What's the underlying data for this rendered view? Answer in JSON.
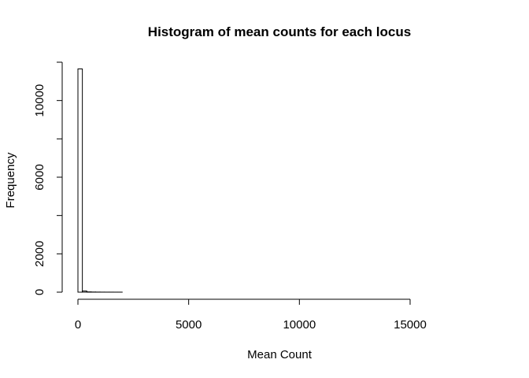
{
  "chart_data": {
    "type": "bar",
    "title": "Histogram of mean counts for each locus",
    "xlabel": "Mean Count",
    "ylabel": "Frequency",
    "bin_width": 200,
    "bin_start": 0,
    "bin_end": 18200,
    "bin_counts_head": [
      11650,
      60,
      15,
      8,
      5,
      3,
      2,
      2,
      1,
      1
    ],
    "tail_count": 0,
    "x_ticks": [
      0,
      5000,
      10000,
      15000
    ],
    "x_tick_labels": [
      "0",
      "5000",
      "10000",
      "15000"
    ],
    "y_ticks": [
      0,
      2000,
      4000,
      6000,
      8000,
      10000
    ],
    "y_tick_labels": [
      "0",
      "2000",
      "",
      "6000",
      "",
      "10000"
    ],
    "xlim": [
      0,
      18200
    ],
    "ylim": [
      0,
      12000
    ],
    "grid": false,
    "legend": "none"
  }
}
